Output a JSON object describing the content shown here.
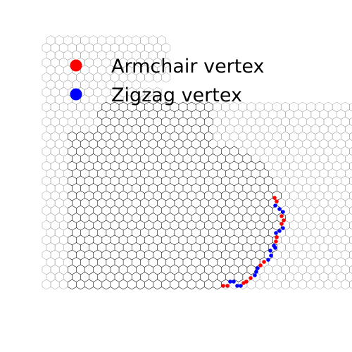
{
  "legend": {
    "armchair": {
      "label": "Armchair vertex",
      "color": "#ff0000"
    },
    "zigzag": {
      "label": "Zigzag vertex",
      "color": "#0000ff"
    }
  },
  "lattice": {
    "edge_color_main": "#111111",
    "edge_color_faded": "#9a9a9a"
  }
}
